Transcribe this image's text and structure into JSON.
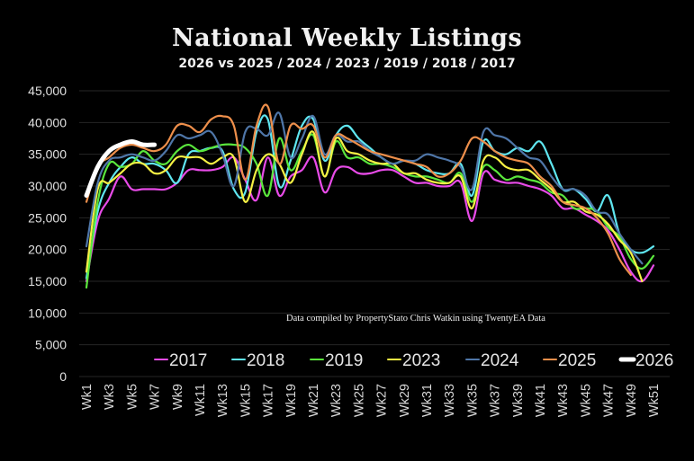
{
  "chart_data": {
    "type": "line",
    "title": "National Weekly Listings",
    "subtitle": "2026 vs 2025 / 2024 / 2023 / 2019 / 2018 / 2017",
    "annotation": "Data compiled by PropertyStato Chris Watkin using TwentyEA Data",
    "xlabel": "",
    "ylabel": "",
    "ylim": [
      0,
      45000
    ],
    "yticks": [
      0,
      5000,
      10000,
      15000,
      20000,
      25000,
      30000,
      35000,
      40000,
      45000
    ],
    "ytick_labels": [
      "0",
      "5,000",
      "10,000",
      "15,000",
      "20,000",
      "25,000",
      "30,000",
      "35,000",
      "40,000",
      "45,000"
    ],
    "x": [
      "Wk1",
      "Wk2",
      "Wk3",
      "Wk4",
      "Wk5",
      "Wk6",
      "Wk7",
      "Wk8",
      "Wk9",
      "Wk10",
      "Wk11",
      "Wk12",
      "Wk13",
      "Wk14",
      "Wk15",
      "Wk16",
      "Wk17",
      "Wk18",
      "Wk19",
      "Wk20",
      "Wk21",
      "Wk22",
      "Wk23",
      "Wk24",
      "Wk25",
      "Wk26",
      "Wk27",
      "Wk28",
      "Wk29",
      "Wk30",
      "Wk31",
      "Wk32",
      "Wk33",
      "Wk34",
      "Wk35",
      "Wk36",
      "Wk37",
      "Wk38",
      "Wk39",
      "Wk40",
      "Wk41",
      "Wk42",
      "Wk43",
      "Wk44",
      "Wk45",
      "Wk46",
      "Wk47",
      "Wk48",
      "Wk49",
      "Wk50",
      "Wk51"
    ],
    "xtick_labels": [
      "Wk1",
      "Wk3",
      "Wk5",
      "Wk7",
      "Wk9",
      "Wk11",
      "Wk13",
      "Wk15",
      "Wk17",
      "Wk19",
      "Wk21",
      "Wk23",
      "Wk25",
      "Wk27",
      "Wk29",
      "Wk31",
      "Wk33",
      "Wk35",
      "Wk37",
      "Wk39",
      "Wk41",
      "Wk43",
      "Wk45",
      "Wk47",
      "Wk49",
      "Wk51"
    ],
    "grid": true,
    "legend_position": "bottom",
    "series": [
      {
        "name": "2017",
        "color": "#e84be8",
        "values": [
          15000,
          24500,
          28000,
          31500,
          29500,
          29500,
          29500,
          29500,
          30500,
          32500,
          32500,
          32500,
          33000,
          34500,
          31000,
          27800,
          34500,
          28500,
          31500,
          32500,
          34500,
          29000,
          32500,
          33000,
          32000,
          32000,
          32500,
          32500,
          31500,
          30500,
          30500,
          30000,
          30000,
          30500,
          24500,
          32000,
          31000,
          30500,
          30500,
          30000,
          29500,
          28500,
          26500,
          26500,
          25500,
          24500,
          23000,
          20000,
          16500,
          15000,
          17500
        ]
      },
      {
        "name": "2018",
        "color": "#5fe6f0",
        "values": [
          15500,
          26000,
          30500,
          33000,
          34500,
          33500,
          33500,
          32500,
          30500,
          35000,
          35500,
          36000,
          35500,
          29500,
          29000,
          38500,
          40500,
          30000,
          34000,
          39500,
          40500,
          34000,
          38000,
          39500,
          37500,
          36000,
          34500,
          33500,
          34000,
          33500,
          32500,
          32000,
          32000,
          33500,
          28500,
          37000,
          35500,
          35000,
          36000,
          35500,
          37000,
          33500,
          29500,
          29500,
          28000,
          26000,
          28500,
          22500,
          20000,
          19500,
          20500
        ]
      },
      {
        "name": "2019",
        "color": "#5ae63c",
        "values": [
          14000,
          27500,
          33500,
          33000,
          33500,
          35500,
          34000,
          33500,
          35500,
          36500,
          35500,
          36000,
          36500,
          36500,
          36000,
          33500,
          28500,
          37500,
          32500,
          35500,
          38000,
          31500,
          37000,
          34500,
          34500,
          33500,
          33500,
          33000,
          32000,
          31500,
          31500,
          31000,
          30500,
          32000,
          27500,
          33000,
          32500,
          31000,
          31500,
          31000,
          30500,
          29000,
          28500,
          26500,
          26500,
          26000,
          23500,
          22000,
          18500,
          17000,
          19000
        ]
      },
      {
        "name": "2023",
        "color": "#f5f044",
        "values": [
          16500,
          29500,
          30500,
          32000,
          33500,
          33500,
          32000,
          32500,
          34500,
          34500,
          34500,
          33500,
          34500,
          34500,
          27500,
          32500,
          35000,
          33500,
          30500,
          35000,
          38500,
          31500,
          37500,
          35500,
          35000,
          34000,
          33500,
          33500,
          32000,
          32000,
          31000,
          30500,
          30500,
          31500,
          26500,
          34000,
          34500,
          33000,
          32500,
          32500,
          31000,
          29500,
          27500,
          27500,
          26000,
          25500,
          24000,
          21500,
          19500,
          15000,
          null
        ]
      },
      {
        "name": "2024",
        "color": "#4f76a8",
        "values": [
          20500,
          30500,
          34000,
          34500,
          35000,
          34500,
          34000,
          35500,
          38000,
          37500,
          38000,
          38500,
          35000,
          30000,
          38500,
          39000,
          38000,
          41500,
          34500,
          37500,
          41000,
          35000,
          38000,
          37000,
          37000,
          35500,
          34500,
          33500,
          34000,
          34000,
          35000,
          34500,
          34000,
          33000,
          29500,
          38500,
          38000,
          37500,
          36000,
          34500,
          34000,
          31500,
          29500,
          29500,
          28500,
          26000,
          25500,
          22500,
          20000,
          17800,
          null
        ]
      },
      {
        "name": "2025",
        "color": "#ee8f4b",
        "values": [
          27500,
          33000,
          34500,
          36000,
          36500,
          36000,
          35500,
          36500,
          39500,
          39500,
          38500,
          40500,
          41000,
          39500,
          31000,
          39500,
          42500,
          33500,
          39500,
          39000,
          39500,
          34500,
          38000,
          37500,
          36500,
          35500,
          35000,
          34500,
          34000,
          33500,
          33000,
          31500,
          32000,
          34000,
          37500,
          37000,
          35500,
          34500,
          34000,
          33500,
          31500,
          30000,
          27500,
          27000,
          26500,
          25000,
          22500,
          18500,
          16000,
          null,
          null
        ]
      },
      {
        "name": "2026",
        "color": "#ffffff",
        "values": [
          28500,
          33000,
          35500,
          36500,
          37000,
          36500,
          36500,
          null,
          null,
          null,
          null,
          null,
          null,
          null,
          null,
          null,
          null,
          null,
          null,
          null,
          null,
          null,
          null,
          null,
          null,
          null,
          null,
          null,
          null,
          null,
          null,
          null,
          null,
          null,
          null,
          null,
          null,
          null,
          null,
          null,
          null,
          null,
          null,
          null,
          null,
          null,
          null,
          null,
          null,
          null,
          null
        ]
      }
    ]
  }
}
